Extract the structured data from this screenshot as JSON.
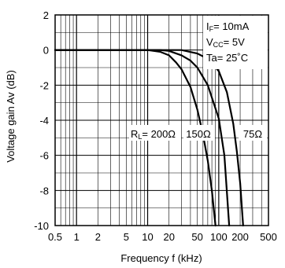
{
  "chart_data": {
    "type": "line",
    "xscale": "log",
    "xlabel": "Frequency f (kHz)",
    "ylabel": "Voltage gain Av (dB)",
    "xlim": [
      0.5,
      500
    ],
    "ylim": [
      -10,
      2
    ],
    "grid": true,
    "x_ticks": [
      0.5,
      1,
      2,
      5,
      10,
      20,
      50,
      100,
      200,
      500
    ],
    "x_tick_labels": [
      "0.5",
      "1",
      "2",
      "5",
      "10",
      "20",
      "50",
      "100",
      "200",
      "500"
    ],
    "y_ticks": [
      2,
      0,
      -2,
      -4,
      -6,
      -8,
      -10
    ],
    "y_tick_labels": [
      "2",
      "0",
      "-2",
      "-4",
      "-6",
      "-8",
      "-10"
    ],
    "conditions": [
      {
        "main": "I",
        "sub": "F",
        "rest": "= 10mA"
      },
      {
        "main": "V",
        "sub": "CC",
        "rest": "= 5V"
      },
      {
        "main": "Ta",
        "sub": "",
        "rest": "= 25˚C"
      }
    ],
    "series_label_prefix": {
      "main": "R",
      "sub": "L",
      "rest": "= "
    },
    "series": [
      {
        "name": "200Ω",
        "x": [
          0.5,
          10,
          15,
          20,
          25,
          30,
          40,
          50,
          60,
          70,
          80,
          90
        ],
        "values": [
          0,
          0,
          -0.1,
          -0.3,
          -0.7,
          -1.1,
          -2.1,
          -3.4,
          -4.8,
          -6.3,
          -8.0,
          -10.0
        ]
      },
      {
        "name": "150Ω",
        "x": [
          0.5,
          15,
          20,
          30,
          40,
          50,
          70,
          100,
          120,
          140
        ],
        "values": [
          0,
          0,
          -0.05,
          -0.3,
          -0.6,
          -1.0,
          -2.0,
          -3.9,
          -6.0,
          -10.0
        ]
      },
      {
        "name": "75Ω",
        "x": [
          0.5,
          30,
          50,
          70,
          100,
          130,
          160,
          180,
          200,
          220
        ],
        "values": [
          0,
          0,
          -0.2,
          -0.5,
          -1.2,
          -2.4,
          -4.2,
          -5.8,
          -7.6,
          -10.0
        ]
      }
    ]
  }
}
